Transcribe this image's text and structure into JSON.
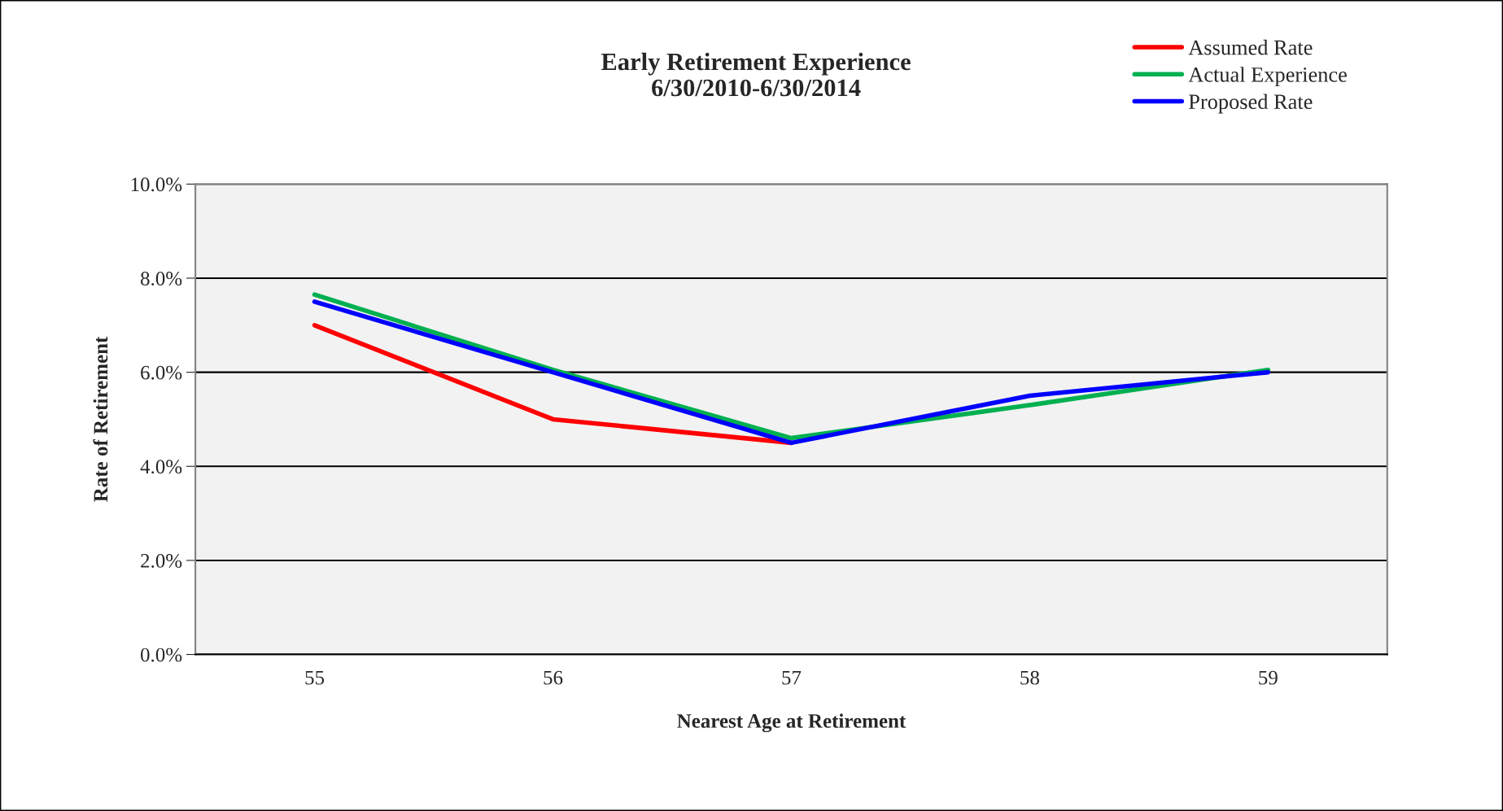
{
  "chart_data": {
    "type": "line",
    "title": "Early Retirement Experience\n6/30/2010-6/30/2014",
    "xlabel": "Nearest Age at Retirement",
    "ylabel": "Rate of Retirement",
    "categories": [
      "55",
      "56",
      "57",
      "58",
      "59"
    ],
    "series": [
      {
        "name": "Assumed Rate",
        "color": "#ff0000",
        "values": [
          7.0,
          5.0,
          4.5,
          null,
          null
        ]
      },
      {
        "name": "Actual Experience",
        "color": "#00b050",
        "values": [
          7.65,
          6.05,
          4.6,
          5.3,
          6.05
        ]
      },
      {
        "name": "Proposed Rate",
        "color": "#0000ff",
        "values": [
          7.5,
          6.0,
          4.5,
          5.5,
          6.0
        ]
      }
    ],
    "ylim": [
      0,
      10
    ],
    "yticks": [
      {
        "value": 0,
        "label": "0.0%"
      },
      {
        "value": 2,
        "label": "2.0%"
      },
      {
        "value": 4,
        "label": "4.0%"
      },
      {
        "value": 6,
        "label": "6.0%"
      },
      {
        "value": 8,
        "label": "8.0%"
      },
      {
        "value": 10,
        "label": "10.0%"
      }
    ],
    "grid": "y",
    "legend": "top right",
    "marker": "none",
    "line_style": "solid"
  }
}
